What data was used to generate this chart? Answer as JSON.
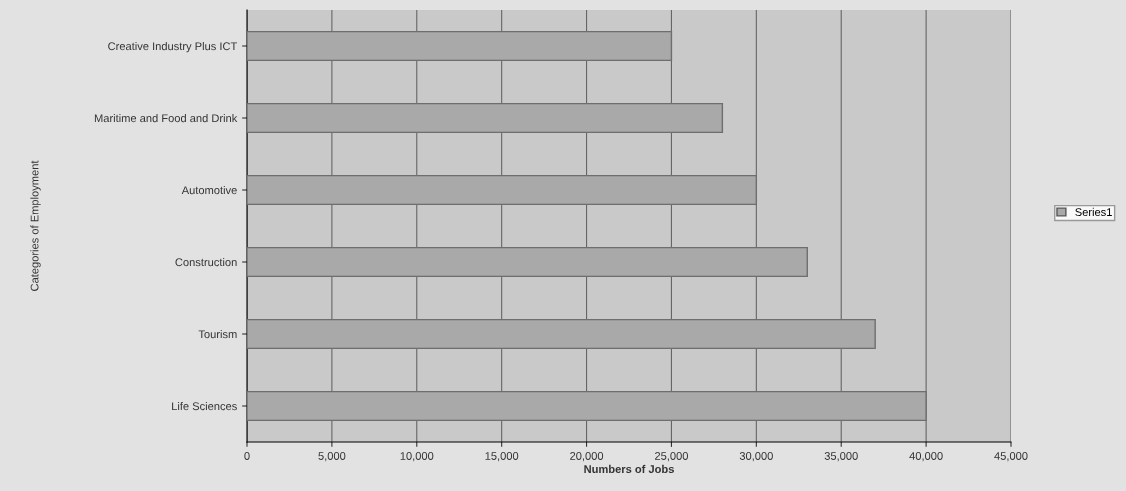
{
  "chart_data": {
    "type": "bar",
    "orientation": "horizontal",
    "xlabel": "Numbers of Jobs",
    "ylabel": "Categories of Employment",
    "categories": [
      "Creative Industry Plus ICT",
      "Maritime and Food and Drink",
      "Automotive",
      "Construction",
      "Tourism",
      "Life Sciences"
    ],
    "series": [
      {
        "name": "Series1",
        "color": "#a9a9a9",
        "values": [
          25000,
          28000,
          30000,
          33000,
          37000,
          40000
        ]
      }
    ],
    "xlim": [
      0,
      45000
    ],
    "xticks": [
      {
        "value": 0,
        "label": "0"
      },
      {
        "value": 5000,
        "label": "5,000"
      },
      {
        "value": 10000,
        "label": "10,000"
      },
      {
        "value": 15000,
        "label": "15,000"
      },
      {
        "value": 20000,
        "label": "20,000"
      },
      {
        "value": 25000,
        "label": "25,000"
      },
      {
        "value": 30000,
        "label": "30,000"
      },
      {
        "value": 35000,
        "label": "35,000"
      },
      {
        "value": 40000,
        "label": "40,000"
      },
      {
        "value": 45000,
        "label": "45,000"
      }
    ],
    "grid": "x",
    "legend": "right"
  }
}
